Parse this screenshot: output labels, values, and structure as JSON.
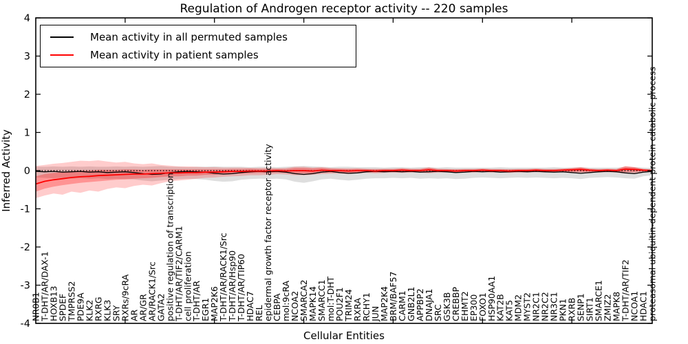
{
  "title": "Regulation of Androgen receptor activity -- 220 samples",
  "legend": {
    "items": [
      {
        "label": "Mean activity in all permuted samples",
        "color": "#000000"
      },
      {
        "label": "Mean activity in patient samples",
        "color": "#ff0000"
      }
    ]
  },
  "axes": {
    "x_title": "Cellular Entities",
    "y_title": "Inferred Activity",
    "y_ticks": [
      4,
      3,
      2,
      1,
      0,
      -1,
      -2,
      -3,
      -4
    ],
    "ylim": [
      -4,
      4
    ]
  },
  "chart_data": {
    "type": "line",
    "title": "Regulation of Androgen receptor activity -- 220 samples",
    "xlabel": "Cellular Entities",
    "ylabel": "Inferred Activity",
    "ylim": [
      -4,
      4
    ],
    "grid": false,
    "legend_position": "upper left",
    "zero_line": 0,
    "x_major_tick_indices": [
      10,
      20,
      30,
      40,
      50,
      60
    ],
    "categories": [
      "NR0B1",
      "T-DHT/AR/DAX-1",
      "HOXB13",
      "SPDEF",
      "TMPRSS2",
      "PDE9A",
      "KLK2",
      "RXRG",
      "KLK3",
      "SRY",
      "RXRs/9cRA",
      "AR",
      "AR/GR",
      "AR/RACK1/Src",
      "GATA2",
      "positive regulation of transcription",
      "T-DHT/AR/TIF2/CARM1",
      "cell proliferation",
      "T-DHT/AR",
      "EGR1",
      "MAP2K6",
      "T-DHT/AR/RACK1/Src",
      "T-DHT/AR/Hsp90",
      "T-DHT/AR/TIP60",
      "HDAC7",
      "REL",
      "epidermal growth factor receptor activity",
      "CEBPA",
      "mol:9cRA",
      "NCOA2",
      "SMARCA2",
      "MAPK14",
      "SMARCC1",
      "mol:T-DHT",
      "POU2F1",
      "TRIM24",
      "RXRA",
      "RCHY1",
      "JUN",
      "MAP2K4",
      "BRM/BAF57",
      "CARM1",
      "GNB2L1",
      "APPBP2",
      "DNAJA1",
      "SRC",
      "GSK3B",
      "CREBBP",
      "EHMT2",
      "EP300",
      "FOXO1",
      "HSP90AA1",
      "KAT2B",
      "KAT5",
      "MDM2",
      "MYST2",
      "NR2C1",
      "NR2C2",
      "NR3C1",
      "PKN1",
      "RXRB",
      "SENP1",
      "SIRT1",
      "SMARCE1",
      "ZMIZ2",
      "MAPK8",
      "T-DHT/AR/TIF2",
      "NCOA1",
      "HDAC1",
      "proteasomal ubiquitin-dependent protein catabolic process"
    ],
    "series": [
      {
        "name": "Mean activity in all permuted samples",
        "color": "#000000",
        "width": 1.3,
        "values": [
          -0.02,
          -0.03,
          -0.02,
          -0.04,
          -0.03,
          -0.02,
          -0.04,
          -0.03,
          -0.05,
          -0.04,
          -0.03,
          -0.05,
          -0.08,
          -0.1,
          -0.09,
          -0.05,
          -0.03,
          -0.02,
          -0.03,
          -0.04,
          -0.07,
          -0.09,
          -0.08,
          -0.05,
          -0.03,
          -0.02,
          -0.03,
          -0.02,
          -0.04,
          -0.08,
          -0.1,
          -0.08,
          -0.04,
          -0.02,
          -0.05,
          -0.07,
          -0.06,
          -0.03,
          -0.02,
          -0.03,
          -0.02,
          -0.03,
          -0.02,
          -0.04,
          -0.03,
          -0.02,
          -0.03,
          -0.05,
          -0.04,
          -0.02,
          -0.03,
          -0.02,
          -0.04,
          -0.03,
          -0.02,
          -0.03,
          -0.02,
          -0.03,
          -0.04,
          -0.03,
          -0.05,
          -0.07,
          -0.05,
          -0.03,
          -0.02,
          -0.03,
          -0.06,
          -0.08,
          -0.04,
          -0.02
        ]
      },
      {
        "name": "Mean activity in patient samples",
        "color": "#ff0000",
        "width": 1.8,
        "values": [
          -0.35,
          -0.28,
          -0.24,
          -0.21,
          -0.18,
          -0.16,
          -0.15,
          -0.13,
          -0.12,
          -0.11,
          -0.1,
          -0.09,
          -0.09,
          -0.08,
          -0.07,
          -0.06,
          -0.06,
          -0.05,
          -0.05,
          -0.04,
          -0.04,
          -0.03,
          -0.02,
          -0.02,
          -0.01,
          -0.01,
          -0.01,
          0.0,
          -0.01,
          0.0,
          0.0,
          -0.01,
          0.01,
          0.0,
          0.0,
          -0.01,
          0.0,
          0.0,
          -0.01,
          0.0,
          0.0,
          0.01,
          0.0,
          0.0,
          0.02,
          0.0,
          0.0,
          -0.01,
          0.0,
          0.0,
          0.01,
          0.0,
          0.0,
          -0.01,
          0.0,
          0.0,
          0.01,
          0.0,
          0.0,
          0.01,
          0.02,
          0.03,
          0.01,
          0.0,
          0.01,
          0.0,
          0.04,
          0.03,
          0.01,
          0.0
        ]
      }
    ],
    "bands": [
      {
        "name": "permuted-samples-range",
        "color": "rgba(0,0,0,0.13)",
        "upper": [
          0.1,
          0.1,
          0.11,
          0.1,
          0.11,
          0.1,
          0.11,
          0.1,
          0.1,
          0.11,
          0.1,
          0.11,
          0.1,
          0.11,
          0.12,
          0.1,
          0.1,
          0.09,
          0.1,
          0.1,
          0.11,
          0.1,
          0.1,
          0.1,
          0.09,
          0.1,
          0.1,
          0.09,
          0.1,
          0.11,
          0.12,
          0.11,
          0.1,
          0.09,
          0.1,
          0.1,
          0.09,
          0.09,
          0.09,
          0.08,
          0.09,
          0.09,
          0.08,
          0.09,
          0.09,
          0.08,
          0.09,
          0.08,
          0.08,
          0.08,
          0.08,
          0.08,
          0.09,
          0.08,
          0.08,
          0.08,
          0.08,
          0.08,
          0.09,
          0.08,
          0.08,
          0.09,
          0.08,
          0.08,
          0.08,
          0.08,
          0.09,
          0.09,
          0.08,
          0.07
        ],
        "lower": [
          -0.18,
          -0.19,
          -0.2,
          -0.19,
          -0.21,
          -0.2,
          -0.21,
          -0.2,
          -0.22,
          -0.21,
          -0.22,
          -0.23,
          -0.26,
          -0.28,
          -0.26,
          -0.24,
          -0.22,
          -0.21,
          -0.22,
          -0.24,
          -0.27,
          -0.29,
          -0.28,
          -0.24,
          -0.22,
          -0.21,
          -0.22,
          -0.21,
          -0.23,
          -0.29,
          -0.32,
          -0.28,
          -0.23,
          -0.21,
          -0.24,
          -0.26,
          -0.24,
          -0.21,
          -0.2,
          -0.2,
          -0.19,
          -0.2,
          -0.19,
          -0.21,
          -0.2,
          -0.21,
          -0.2,
          -0.22,
          -0.21,
          -0.19,
          -0.18,
          -0.19,
          -0.2,
          -0.19,
          -0.18,
          -0.19,
          -0.18,
          -0.19,
          -0.2,
          -0.19,
          -0.2,
          -0.22,
          -0.19,
          -0.18,
          -0.17,
          -0.18,
          -0.2,
          -0.21,
          -0.15,
          -0.12
        ]
      },
      {
        "name": "patient-samples-outer-range",
        "color": "rgba(255,0,0,0.20)",
        "upper": [
          0.12,
          0.15,
          0.18,
          0.2,
          0.23,
          0.26,
          0.25,
          0.27,
          0.24,
          0.21,
          0.23,
          0.19,
          0.17,
          0.19,
          0.15,
          0.13,
          0.11,
          0.11,
          0.1,
          0.09,
          0.09,
          0.08,
          0.08,
          0.08,
          0.07,
          0.07,
          0.07,
          0.06,
          0.07,
          0.1,
          0.1,
          0.08,
          0.09,
          0.07,
          0.06,
          0.06,
          0.06,
          0.05,
          0.05,
          0.05,
          0.05,
          0.06,
          0.05,
          0.05,
          0.08,
          0.05,
          0.04,
          0.04,
          0.04,
          0.04,
          0.05,
          0.04,
          0.04,
          0.04,
          0.04,
          0.04,
          0.05,
          0.04,
          0.04,
          0.05,
          0.06,
          0.08,
          0.05,
          0.04,
          0.04,
          0.04,
          0.12,
          0.09,
          0.05,
          0.03
        ],
        "lower": [
          -0.72,
          -0.65,
          -0.6,
          -0.63,
          -0.55,
          -0.58,
          -0.52,
          -0.55,
          -0.48,
          -0.44,
          -0.46,
          -0.4,
          -0.37,
          -0.39,
          -0.33,
          -0.28,
          -0.26,
          -0.24,
          -0.21,
          -0.19,
          -0.18,
          -0.16,
          -0.15,
          -0.14,
          -0.12,
          -0.12,
          -0.11,
          -0.09,
          -0.1,
          -0.12,
          -0.12,
          -0.11,
          -0.09,
          -0.08,
          -0.08,
          -0.09,
          -0.07,
          -0.06,
          -0.07,
          -0.06,
          -0.05,
          -0.06,
          -0.05,
          -0.05,
          -0.07,
          -0.05,
          -0.05,
          -0.06,
          -0.05,
          -0.05,
          -0.04,
          -0.05,
          -0.05,
          -0.06,
          -0.05,
          -0.05,
          -0.04,
          -0.05,
          -0.05,
          -0.04,
          -0.05,
          -0.06,
          -0.05,
          -0.05,
          -0.04,
          -0.05,
          -0.08,
          -0.07,
          -0.03,
          -0.03
        ]
      },
      {
        "name": "patient-samples-inner-range",
        "color": "rgba(255,0,0,0.28)",
        "upper": [
          -0.15,
          -0.09,
          -0.06,
          -0.04,
          -0.01,
          0.0,
          0.0,
          0.02,
          0.02,
          0.02,
          0.03,
          0.03,
          0.02,
          0.03,
          0.03,
          0.03,
          0.03,
          0.03,
          0.03,
          0.03,
          0.03,
          0.03,
          0.04,
          0.04,
          0.05,
          0.04,
          0.04,
          0.05,
          0.04,
          0.07,
          0.07,
          0.06,
          0.07,
          0.05,
          0.05,
          0.04,
          0.05,
          0.04,
          0.03,
          0.04,
          0.04,
          0.06,
          0.04,
          0.04,
          0.08,
          0.04,
          0.04,
          0.03,
          0.04,
          0.04,
          0.05,
          0.04,
          0.04,
          0.03,
          0.04,
          0.04,
          0.05,
          0.04,
          0.04,
          0.05,
          0.07,
          0.09,
          0.05,
          0.04,
          0.05,
          0.04,
          0.11,
          0.09,
          0.04,
          0.03
        ],
        "lower": [
          -0.55,
          -0.47,
          -0.42,
          -0.38,
          -0.35,
          -0.32,
          -0.3,
          -0.28,
          -0.26,
          -0.24,
          -0.23,
          -0.21,
          -0.2,
          -0.19,
          -0.17,
          -0.15,
          -0.15,
          -0.13,
          -0.13,
          -0.11,
          -0.11,
          -0.09,
          -0.08,
          -0.08,
          -0.07,
          -0.06,
          -0.06,
          -0.05,
          -0.06,
          -0.07,
          -0.07,
          -0.08,
          -0.05,
          -0.05,
          -0.05,
          -0.06,
          -0.05,
          -0.04,
          -0.05,
          -0.04,
          -0.04,
          -0.04,
          -0.04,
          -0.04,
          -0.04,
          -0.04,
          -0.04,
          -0.05,
          -0.04,
          -0.04,
          -0.03,
          -0.04,
          -0.04,
          -0.05,
          -0.04,
          -0.04,
          -0.03,
          -0.04,
          -0.04,
          -0.03,
          -0.03,
          -0.03,
          -0.03,
          -0.04,
          -0.03,
          -0.04,
          -0.03,
          -0.03,
          -0.02,
          -0.03
        ]
      }
    ]
  }
}
